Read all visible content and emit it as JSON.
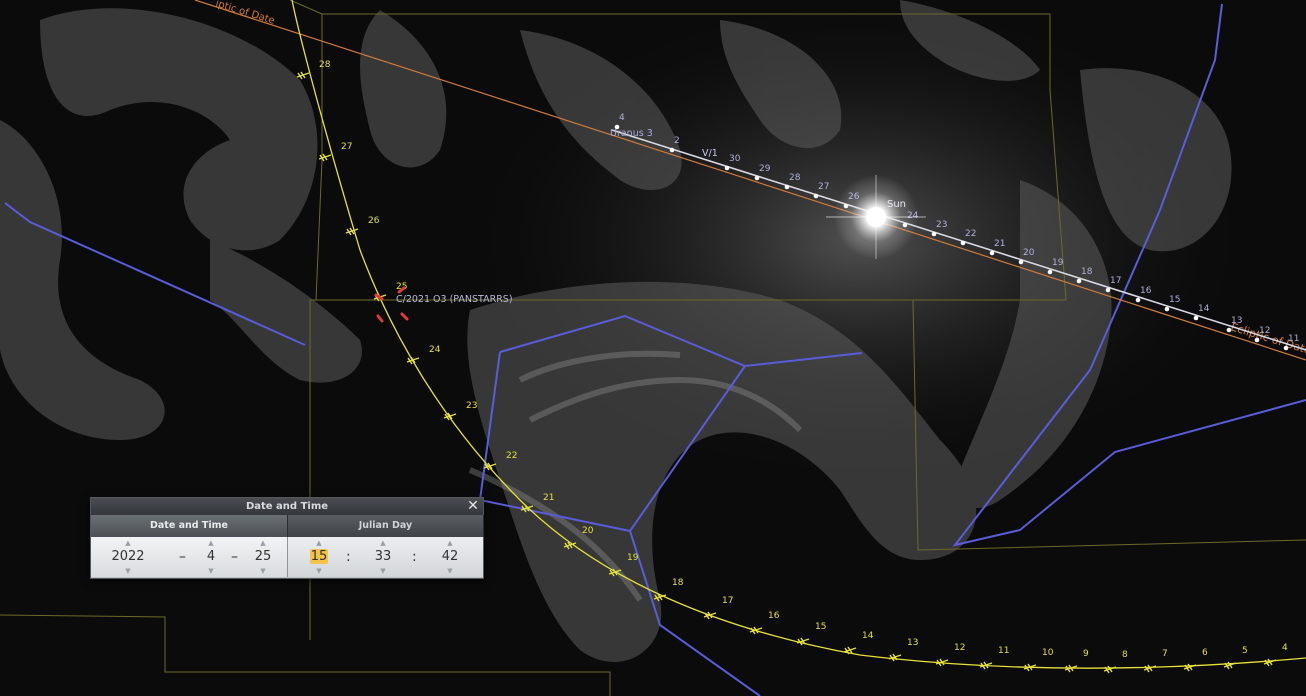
{
  "sky_labels": {
    "ecliptic_top": "iptic of Date",
    "ecliptic_right": "Ecliptic of Date",
    "sun": "Sun",
    "comet": "C/2021 O3 (PANSTARRS)",
    "uranus": "Uranus 3",
    "v1": "V/1"
  },
  "sun_track_days": [
    "4",
    "2",
    "30",
    "29",
    "28",
    "27",
    "26",
    "24",
    "23",
    "22",
    "21",
    "20",
    "19",
    "18",
    "17",
    "16",
    "15",
    "14",
    "13",
    "12",
    "11"
  ],
  "comet_track_days": [
    "28",
    "27",
    "26",
    "25",
    "24",
    "23",
    "22",
    "21",
    "20",
    "19",
    "18",
    "17",
    "16",
    "15",
    "14",
    "13",
    "12",
    "11",
    "10",
    "9",
    "8",
    "7",
    "6",
    "5",
    "4"
  ],
  "dialog": {
    "title": "Date and Time",
    "close_label": "✕",
    "tabs": [
      {
        "label": "Date and Time",
        "active": true
      },
      {
        "label": "Julian Day",
        "active": false
      }
    ],
    "date": {
      "year": "2022",
      "month": "4",
      "day": "25"
    },
    "time": {
      "hour": "15",
      "minute": "33",
      "second": "42"
    },
    "date_sep": "–",
    "time_sep": ":",
    "spin_up": "▲",
    "spin_down": "▼"
  },
  "colors": {
    "ecliptic": "#d17a3a",
    "sun_track": "#c9cbe0",
    "comet_track": "#e6e03a",
    "constellation_lines": "#5a5cd9",
    "boundaries": "#6b6a2a"
  }
}
